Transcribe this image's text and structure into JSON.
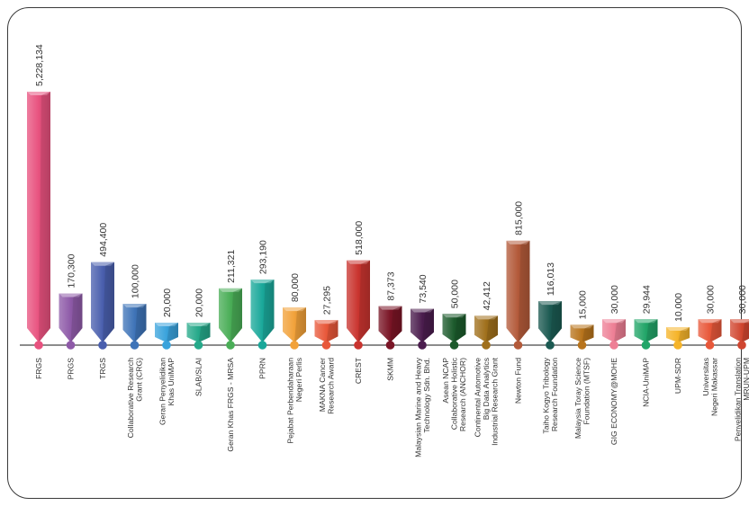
{
  "chart_data": {
    "type": "bar",
    "title": "",
    "xlabel": "",
    "ylabel": "",
    "categories": [
      [
        "FRGS"
      ],
      [
        "PRGS"
      ],
      [
        "TRGS"
      ],
      [
        "Collaborative Research",
        "Grant (CRG)"
      ],
      [
        "Geran Penyelidikan",
        "Khas UniMAP"
      ],
      [
        "SLAB/SLAI"
      ],
      [
        "Geran Khas FRGS - MRSA"
      ],
      [
        "PPRN"
      ],
      [
        "Pejabat Perbendaharaan",
        "Negeri Perlis"
      ],
      [
        "MAKNA Cancer",
        "Research Award"
      ],
      [
        "CREST"
      ],
      [
        "SKMM"
      ],
      [
        "Malaysian Marine and Heavy",
        "Technology Sdn. Bhd."
      ],
      [
        "Asean NCAP",
        "Collaborative Holistic",
        "Research (ANCHOR)"
      ],
      [
        "Continental Automotive",
        "Big Data Analytics",
        "Industrial Research Grant"
      ],
      [
        "Newton Fund"
      ],
      [
        "Taiho Kogyo Tribology",
        "Research Foundation"
      ],
      [
        "Malaysia Toray Science",
        "Foundation (MTSF)"
      ],
      [
        "GIG ECONOMY@MOHE"
      ],
      [
        "NCIA-UniMAP"
      ],
      [
        "UPM-SDR"
      ],
      [
        "Universitas",
        "Negeri Makassar"
      ],
      [
        "Penyelidikan Translation",
        "MRUN-UPM"
      ]
    ],
    "values": [
      5228134,
      170300,
      494400,
      100000,
      20000,
      20000,
      211321,
      293190,
      80000,
      27295,
      518000,
      87373,
      73540,
      50000,
      42412,
      815000,
      116013,
      15000,
      30000,
      29944,
      10000,
      30000,
      30000
    ],
    "value_labels": [
      "5,228,134",
      "170,300",
      "494,400",
      "100,000",
      "20,000",
      "20,000",
      "211,321",
      "293,190",
      "80,000",
      "27,295",
      "518,000",
      "87,373",
      "73,540",
      "50,000",
      "42,412",
      "815,000",
      "116,013",
      "15,000",
      "30,000",
      "29,944",
      "10,000",
      "30,000",
      "30,000"
    ],
    "colors": [
      "#e8527f",
      "#8e5aa8",
      "#4a5fae",
      "#3f74b8",
      "#3aa3dc",
      "#26a98a",
      "#4aae57",
      "#1aa89a",
      "#f2a23a",
      "#e8583a",
      "#c9342f",
      "#7a1526",
      "#4b1d4e",
      "#1c5a2c",
      "#a0701c",
      "#b35a3a",
      "#1c5a52",
      "#b8741c",
      "#ee7f95",
      "#22a568",
      "#f5b42a",
      "#e8583a",
      "#d0452f"
    ],
    "grid": false,
    "legend": "none"
  }
}
